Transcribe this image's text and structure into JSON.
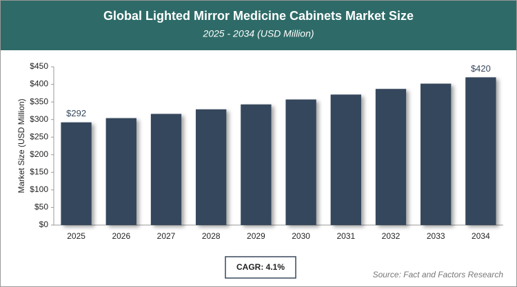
{
  "chart_data": {
    "type": "bar",
    "title": "Global Lighted Mirror Medicine Cabinets Market Size",
    "subtitle": "2025 - 2034 (USD Million)",
    "y_label": "Market Size (USD Million)",
    "categories": [
      "2025",
      "2026",
      "2027",
      "2028",
      "2029",
      "2030",
      "2031",
      "2032",
      "2033",
      "2034"
    ],
    "values": [
      292,
      304,
      316,
      329,
      343,
      357,
      371,
      387,
      402,
      420
    ],
    "value_labels": [
      "$292",
      null,
      null,
      null,
      null,
      null,
      null,
      null,
      null,
      "$420"
    ],
    "color": "#36475c",
    "ylim": [
      0,
      450
    ],
    "yticks": [
      {
        "value": 0,
        "label": "$0"
      },
      {
        "value": 50,
        "label": "$50"
      },
      {
        "value": 100,
        "label": "$100"
      },
      {
        "value": 150,
        "label": "$150"
      },
      {
        "value": 200,
        "label": "$200"
      },
      {
        "value": 250,
        "label": "$250"
      },
      {
        "value": 300,
        "label": "$300"
      },
      {
        "value": 350,
        "label": "$350"
      },
      {
        "value": 400,
        "label": "$400"
      },
      {
        "value": 450,
        "label": "$450"
      }
    ],
    "grid": false,
    "cagr": "CAGR: 4.1%",
    "source": "Source: Fact and Factors Research"
  }
}
